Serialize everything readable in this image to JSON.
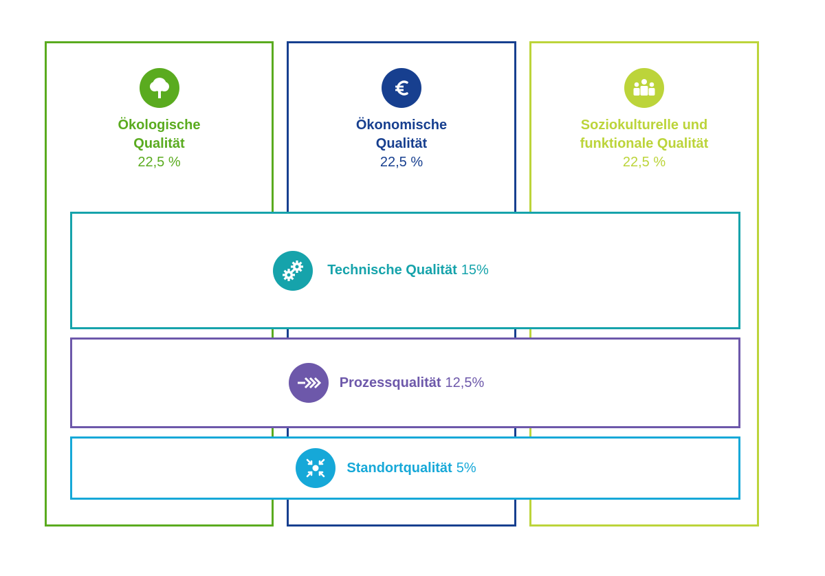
{
  "colors": {
    "ecological": "#5aab1f",
    "economic": "#173f8f",
    "sociocultural": "#bcd43a",
    "technical": "#16a3ab",
    "process": "#6d58aa",
    "site": "#16a8d8"
  },
  "pillars": [
    {
      "id": "ecological",
      "icon": "tree-icon",
      "line1": "Ökologische",
      "line2": "Qualität",
      "percent": "22,5 %"
    },
    {
      "id": "economic",
      "icon": "euro-icon",
      "line1": "Ökonomische",
      "line2": "Qualität",
      "percent": "22,5 %"
    },
    {
      "id": "sociocultural",
      "icon": "people-icon",
      "line1": "Soziokulturelle und",
      "line2": "funktionale Qualität",
      "percent": "22,5 %"
    }
  ],
  "bands": [
    {
      "id": "technical",
      "icon": "gears-icon",
      "name": "Technische Qualität",
      "percent": "15%"
    },
    {
      "id": "process",
      "icon": "arrows-icon",
      "name": "Prozessqualität",
      "percent": "12,5%"
    },
    {
      "id": "site",
      "icon": "location-target-icon",
      "name": "Standortqualität",
      "percent": "5%"
    }
  ]
}
